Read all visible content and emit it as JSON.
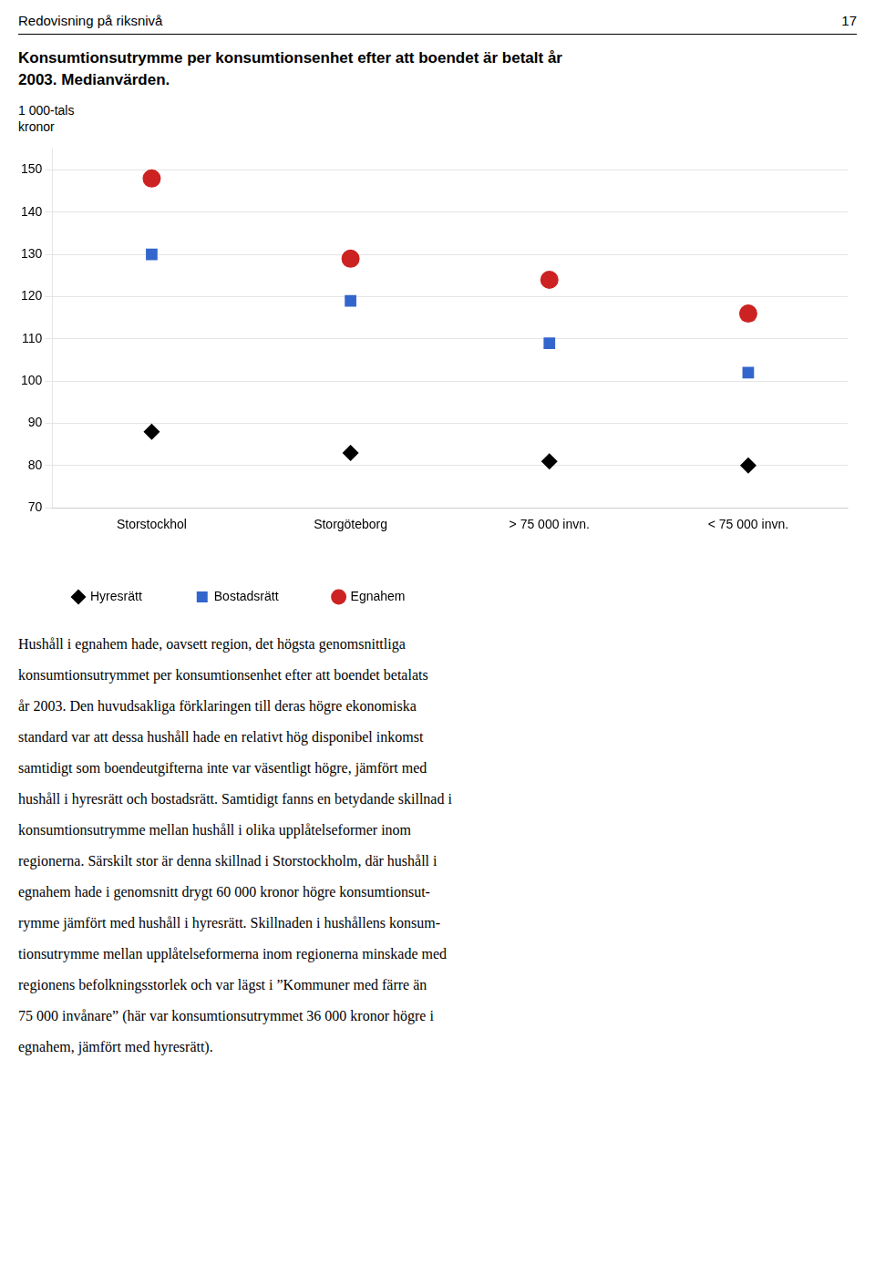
{
  "chart_data": {
    "type": "scatter",
    "title": "Konsumtionsutrymme per konsumtionsenhet efter att boendet är betalt år\n2003. Medianvärden.",
    "ylabel": "1 000-tals\nkronor",
    "categories": [
      "Storstockhol",
      "Storgöteborg",
      "> 75 000 invn.",
      "< 75 000 invn."
    ],
    "series": [
      {
        "name": "Hyresrätt",
        "color": "#000000",
        "marker": "diamond",
        "values": [
          88,
          83,
          81,
          80
        ]
      },
      {
        "name": "Bostadsrätt",
        "color": "#3366cc",
        "marker": "square",
        "values": [
          130,
          119,
          109,
          102
        ]
      },
      {
        "name": "Egnahem",
        "color": "#cc2222",
        "marker": "circle",
        "values": [
          148,
          129,
          124,
          116
        ]
      }
    ],
    "ylim": [
      70,
      155
    ],
    "yticks": [
      70,
      80,
      90,
      100,
      110,
      120,
      130,
      140,
      150
    ],
    "grid": true,
    "legend": "bottom",
    "annotations": {
      "header": [
        "Redovisning på riksnivå",
        "17"
      ],
      "body": [
        "Hushåll i egnahem hade, oavsett region, det högsta genomsnittliga",
        "konsumtionsutrymmet per konsumtionsenhet efter att boendet betalats",
        "år 2003. Den huvudsakliga förklaringen till deras högre ekonomiska",
        "standard var att dessa hushåll hade en relativt hög disponibel inkomst",
        "samtidigt som boendeutgifterna inte var väsentligt högre, jämfört med",
        "hushåll i hyresrätt och bostadsrätt. Samtidigt fanns en betydande skillnad i",
        "konsumtionsutrymme mellan hushåll i olika upplåtelseformer inom",
        "regionerna. Särskilt stor är denna skillnad i Storstockholm, där hushåll i",
        "egnahem hade i genomsnitt drygt 60 000 kronor högre konsumtionsut-",
        "rymme jämfört med hushåll i hyresrätt. Skillnaden i hushållens konsum-",
        "tionsutrymme mellan upplåtelseformerna inom regionerna minskade med",
        "regionens befolkningsstorlek och var lägst i ”Kommuner med färre än",
        "75 000 invånare” (här var konsumtionsutrymmet 36 000 kronor högre i",
        "egnahem, jämfört med hyresrätt)."
      ]
    }
  }
}
